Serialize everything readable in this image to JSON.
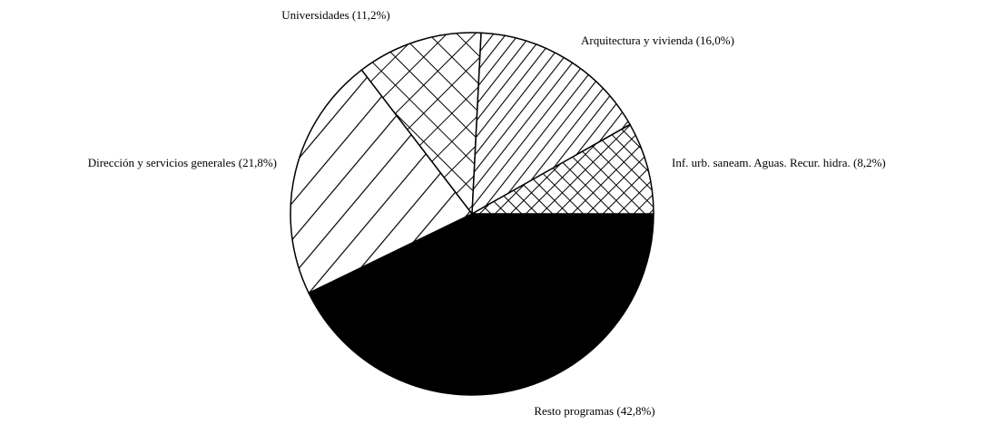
{
  "chart_data": {
    "type": "pie",
    "categories": [
      "Resto programas",
      "Dirección y servicios generales",
      "Universidades",
      "Arquitectura y vivienda",
      "Inf. urb. saneam. Aguas. Recur. hidra."
    ],
    "values": [
      42.8,
      21.8,
      11.2,
      16.0,
      8.2
    ],
    "value_labels": [
      "(42,8%)",
      "(21,8%)",
      "(11,2%)",
      "(16,0%)",
      "(8,2%)"
    ],
    "patterns": [
      "solid",
      "hatch-wide",
      "cross-wide",
      "hatch-dense",
      "cross-dense"
    ],
    "colors": [
      "#000000",
      "#ffffff",
      "#ffffff",
      "#ffffff",
      "#ffffff"
    ]
  }
}
